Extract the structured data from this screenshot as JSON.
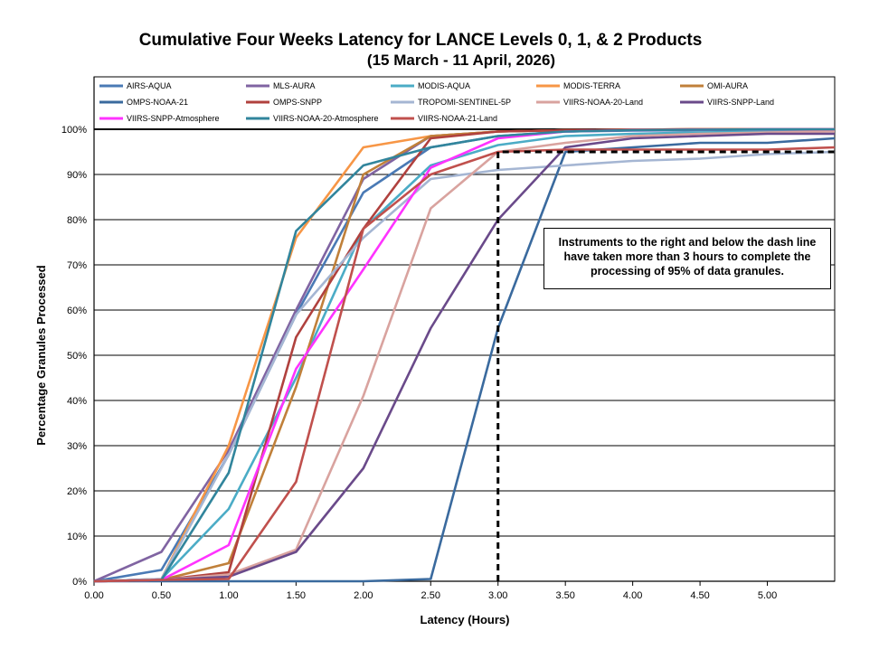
{
  "chart_data": {
    "type": "line",
    "title": "Cumulative Four Weeks Latency  for LANCE Levels 0, 1, & 2 Products",
    "subtitle": "(15  March   - 11  April,  2026)",
    "xlabel": "Latency (Hours)",
    "ylabel": "Percentage Granules Processed",
    "x_ticks": [
      "0.00",
      "0.50",
      "1.00",
      "1.50",
      "2.00",
      "2.50",
      "3.00",
      "3.50",
      "4.00",
      "4.50",
      "5.00"
    ],
    "y_ticks": [
      "0%",
      "10%",
      "20%",
      "30%",
      "40%",
      "50%",
      "60%",
      "70%",
      "80%",
      "90%",
      "100%"
    ],
    "xlim": [
      0,
      5.5
    ],
    "ylim": [
      0,
      100
    ],
    "grid": "horizontal",
    "legend_position": "top",
    "x": [
      0,
      0.5,
      1.0,
      1.5,
      2.0,
      2.5,
      3.0,
      3.5,
      4.0,
      4.5,
      5.0,
      5.5
    ],
    "series": [
      {
        "name": "AIRS-AQUA",
        "color": "#4a7ab5",
        "values": [
          0,
          2.5,
          28,
          59,
          86,
          96,
          98.5,
          99.5,
          99.7,
          99.8,
          99.9,
          100
        ]
      },
      {
        "name": "MLS-AURA",
        "color": "#8064a2",
        "values": [
          0,
          6.5,
          29,
          60,
          89,
          98.5,
          99.5,
          99.8,
          99.9,
          100,
          100,
          100
        ]
      },
      {
        "name": "MODIS-AQUA",
        "color": "#4bacc6",
        "values": [
          0,
          0.5,
          16,
          45,
          78,
          92,
          96.5,
          98.5,
          99,
          99.3,
          99.5,
          99.7
        ]
      },
      {
        "name": "MODIS-TERRA",
        "color": "#f79646",
        "values": [
          0,
          0.5,
          30,
          76,
          96,
          98.5,
          99.5,
          99.8,
          99.9,
          100,
          100,
          100
        ]
      },
      {
        "name": "OMI-AURA",
        "color": "#c0803a",
        "values": [
          0,
          0.3,
          4,
          43,
          90,
          98.5,
          99.5,
          99.8,
          99.9,
          100,
          100,
          100
        ]
      },
      {
        "name": "OMPS-NOAA-21",
        "color": "#3a6a9e",
        "values": [
          0,
          0,
          0,
          0,
          0,
          0.5,
          56,
          95,
          96,
          97,
          97,
          98
        ]
      },
      {
        "name": "OMPS-SNPP",
        "color": "#b0413e",
        "values": [
          0,
          0.3,
          2,
          54,
          78,
          98,
          99.5,
          99.8,
          99.9,
          100,
          100,
          100
        ]
      },
      {
        "name": "TROPOMI-SENTINEL-5P",
        "color": "#a5b6d3",
        "values": [
          0,
          0.5,
          28,
          59,
          76,
          89,
          91,
          92,
          93,
          93.5,
          94.5,
          95
        ]
      },
      {
        "name": "VIIRS-NOAA-20-Land",
        "color": "#d9a39f",
        "values": [
          0,
          0.3,
          1.5,
          7,
          41,
          82.5,
          95,
          97,
          98.5,
          99,
          99.3,
          99.5
        ]
      },
      {
        "name": "VIIRS-SNPP-Land",
        "color": "#6a4a8a",
        "values": [
          0,
          0.3,
          1,
          6.5,
          25,
          56,
          80,
          96,
          98,
          98.5,
          99,
          99
        ]
      },
      {
        "name": "VIIRS-SNPP-Atmosphere",
        "color": "#ff33ff",
        "values": [
          0,
          0.3,
          8,
          47,
          69,
          91.5,
          98,
          99.5,
          99.8,
          99.9,
          100,
          100
        ]
      },
      {
        "name": "VIIRS-NOAA-20-Atmosphere",
        "color": "#31859c",
        "values": [
          0,
          0.3,
          24,
          77.5,
          92,
          96,
          98.5,
          99.5,
          99.8,
          99.9,
          100,
          100
        ]
      },
      {
        "name": "VIIRS-NOAA-21-Land",
        "color": "#c0504d",
        "values": [
          0,
          0.3,
          0.5,
          22,
          78,
          90,
          95,
          95.5,
          95.5,
          95.5,
          95.5,
          96
        ]
      }
    ],
    "threshold_line": {
      "x": 3.0,
      "y": 95,
      "style": "dashed"
    },
    "annotation": "Instruments to the right and below the dash line have taken more than 3 hours to complete the processing of 95% of data granules."
  }
}
